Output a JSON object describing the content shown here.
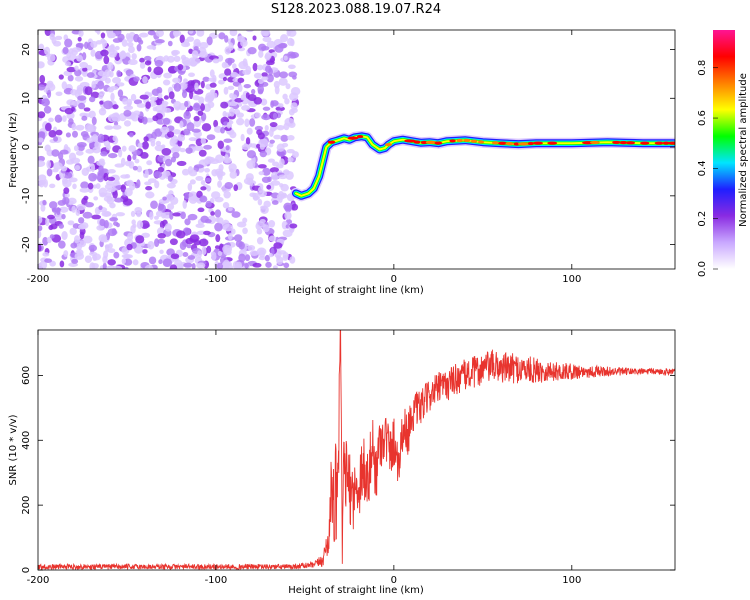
{
  "title": "S128.2023.088.19.07.R24",
  "chart_data": [
    {
      "type": "heatmap",
      "xlabel": "Height of straight line (km)",
      "ylabel": "Frequency (Hz)",
      "xlim": [
        -200,
        158
      ],
      "ylim": [
        -25,
        24
      ],
      "x_ticks": [
        -200,
        -100,
        0,
        100
      ],
      "x_tick_labels": [
        "-200",
        "-100",
        "0",
        "100"
      ],
      "y_ticks": [
        20,
        10,
        0,
        -10,
        -20
      ],
      "y_tick_labels": [
        "20",
        "10",
        "0",
        "-10",
        "-20"
      ],
      "colorbar": {
        "label": "Normalized spectral amplitude",
        "range": [
          0,
          0.95
        ],
        "ticks": [
          0,
          0.2,
          0.4,
          0.6,
          0.8
        ],
        "tick_labels": [
          "0.0",
          "0.2",
          "0.4",
          "0.6",
          "0.8"
        ],
        "colormap": [
          "#ffffff",
          "#c9a8ff",
          "#8a2be2",
          "#1f1fff",
          "#00e5ff",
          "#00ff00",
          "#ffff00",
          "#ff8000",
          "#ff0000",
          "#ff1493"
        ]
      },
      "noise_region_x": [
        -200,
        -55
      ],
      "signal_track": {
        "x": [
          -55,
          -52,
          -48,
          -45,
          -42,
          -40,
          -38,
          -35,
          -32,
          -28,
          -25,
          -22,
          -18,
          -15,
          -12,
          -10,
          -8,
          -5,
          -3,
          0,
          5,
          10,
          15,
          20,
          25,
          30,
          40,
          50,
          60,
          70,
          80,
          90,
          100,
          110,
          120,
          130,
          140,
          150,
          158
        ],
        "frequency": [
          -9.5,
          -10,
          -9.5,
          -8.5,
          -6,
          -3,
          0,
          1,
          1.3,
          1.8,
          1.5,
          2.0,
          2.2,
          2.0,
          0.5,
          0.0,
          -0.5,
          -0.2,
          0.5,
          1.2,
          1.5,
          1.2,
          0.9,
          1.0,
          0.8,
          1.2,
          1.4,
          1.0,
          0.8,
          0.6,
          0.8,
          0.8,
          0.8,
          0.9,
          1.0,
          0.9,
          0.8,
          0.8,
          0.8
        ],
        "peak_amplitude": 0.9
      },
      "grid": false
    },
    {
      "type": "line",
      "xlabel": "Height of straight line (km)",
      "ylabel": "SNR (10 * v/v)",
      "xlim": [
        -200,
        158
      ],
      "ylim": [
        0,
        740
      ],
      "x_ticks": [
        -200,
        -100,
        0,
        100
      ],
      "x_tick_labels": [
        "-200",
        "-100",
        "0",
        "100"
      ],
      "y_ticks": [
        0,
        200,
        400,
        600
      ],
      "y_tick_labels": [
        "0",
        "200",
        "400",
        "600"
      ],
      "color": "#e8342e",
      "series": [
        {
          "x": [
            -200,
            -150,
            -100,
            -60,
            -45,
            -40,
            -37,
            -35,
            -33,
            -31,
            -30,
            -29,
            -28,
            -27,
            -25,
            -22,
            -20,
            -17,
            -15,
            -12,
            -10,
            -8,
            -5,
            -2,
            0,
            3,
            5,
            8,
            10,
            15,
            20,
            25,
            30,
            35,
            40,
            50,
            55,
            60,
            70,
            80,
            90,
            100,
            110,
            120,
            130,
            140,
            150,
            158
          ],
          "values": [
            10,
            10,
            10,
            10,
            15,
            30,
            90,
            250,
            200,
            400,
            740,
            80,
            330,
            300,
            250,
            230,
            260,
            330,
            250,
            380,
            300,
            390,
            420,
            360,
            400,
            330,
            440,
            420,
            480,
            500,
            540,
            560,
            570,
            590,
            600,
            620,
            630,
            625,
            620,
            615,
            612,
            612,
            612,
            612,
            612,
            612,
            612,
            612
          ],
          "noise_amplitude": [
            8,
            8,
            8,
            8,
            10,
            20,
            60,
            120,
            160,
            200,
            0,
            100,
            110,
            120,
            110,
            110,
            110,
            110,
            110,
            100,
            90,
            90,
            80,
            80,
            80,
            80,
            70,
            70,
            60,
            55,
            50,
            50,
            50,
            50,
            50,
            50,
            50,
            50,
            45,
            40,
            30,
            25,
            20,
            15,
            12,
            10,
            10,
            10
          ]
        }
      ],
      "grid": false
    }
  ]
}
